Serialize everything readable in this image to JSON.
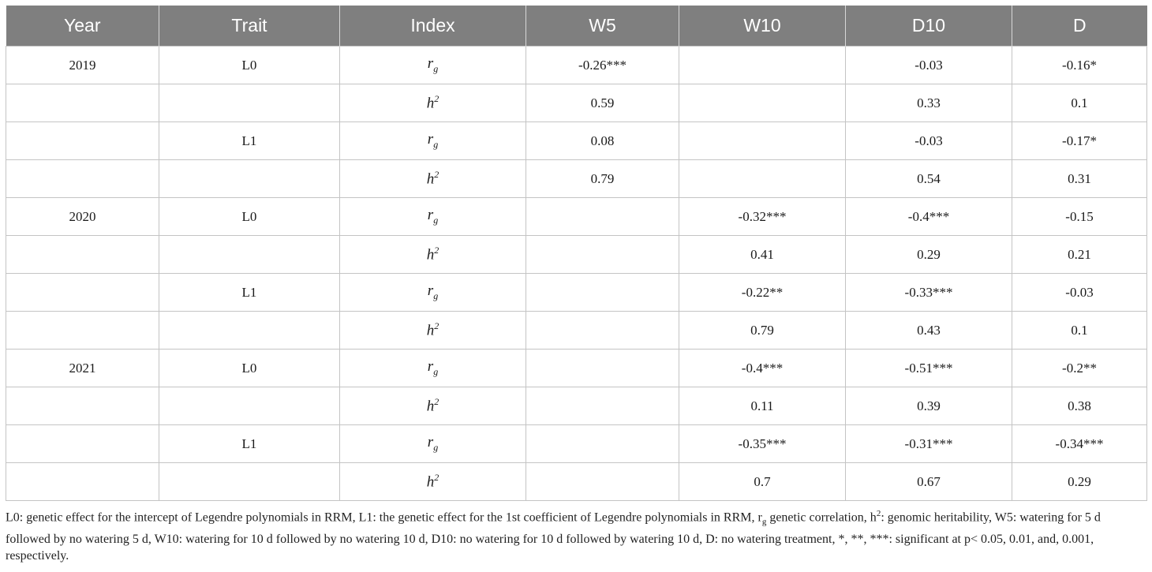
{
  "table": {
    "headers": [
      "Year",
      "Trait",
      "Index",
      "W5",
      "W10",
      "D10",
      "D"
    ],
    "rows": [
      {
        "year": "2019",
        "trait": "L0",
        "index_base": "r",
        "index_sub": "g",
        "index_sup": "",
        "w5": "-0.26***",
        "w10": "",
        "d10": "-0.03",
        "d": "-0.16*"
      },
      {
        "year": "",
        "trait": "",
        "index_base": "h",
        "index_sub": "",
        "index_sup": "2",
        "w5": "0.59",
        "w10": "",
        "d10": "0.33",
        "d": "0.1"
      },
      {
        "year": "",
        "trait": "L1",
        "index_base": "r",
        "index_sub": "g",
        "index_sup": "",
        "w5": "0.08",
        "w10": "",
        "d10": "-0.03",
        "d": "-0.17*"
      },
      {
        "year": "",
        "trait": "",
        "index_base": "h",
        "index_sub": "",
        "index_sup": "2",
        "w5": "0.79",
        "w10": "",
        "d10": "0.54",
        "d": "0.31"
      },
      {
        "year": "2020",
        "trait": "L0",
        "index_base": "r",
        "index_sub": "g",
        "index_sup": "",
        "w5": "",
        "w10": "-0.32***",
        "d10": "-0.4***",
        "d": "-0.15"
      },
      {
        "year": "",
        "trait": "",
        "index_base": "h",
        "index_sub": "",
        "index_sup": "2",
        "w5": "",
        "w10": "0.41",
        "d10": "0.29",
        "d": "0.21"
      },
      {
        "year": "",
        "trait": "L1",
        "index_base": "r",
        "index_sub": "g",
        "index_sup": "",
        "w5": "",
        "w10": "-0.22**",
        "d10": "-0.33***",
        "d": "-0.03"
      },
      {
        "year": "",
        "trait": "",
        "index_base": "h",
        "index_sub": "",
        "index_sup": "2",
        "w5": "",
        "w10": "0.79",
        "d10": "0.43",
        "d": "0.1"
      },
      {
        "year": "2021",
        "trait": "L0",
        "index_base": "r",
        "index_sub": "g",
        "index_sup": "",
        "w5": "",
        "w10": "-0.4***",
        "d10": "-0.51***",
        "d": "-0.2**"
      },
      {
        "year": "",
        "trait": "",
        "index_base": "h",
        "index_sub": "",
        "index_sup": "2",
        "w5": "",
        "w10": "0.11",
        "d10": "0.39",
        "d": "0.38"
      },
      {
        "year": "",
        "trait": "L1",
        "index_base": "r",
        "index_sub": "g",
        "index_sup": "",
        "w5": "",
        "w10": "-0.35***",
        "d10": "-0.31***",
        "d": "-0.34***"
      },
      {
        "year": "",
        "trait": "",
        "index_base": "h",
        "index_sub": "",
        "index_sup": "2",
        "w5": "",
        "w10": "0.7",
        "d10": "0.67",
        "d": "0.29"
      }
    ]
  },
  "caption": {
    "part1": "L0: genetic effect for the intercept of Legendre polynomials in RRM, L1: the genetic effect for the 1st coefficient of Legendre polynomials in RRM, r",
    "sub_g": "g",
    "part2": " genetic correlation, h",
    "sup_2": "2",
    "part3": ": genomic heritability, W5: watering for 5 d followed by no watering 5 d, W10: watering for 10 d followed by no watering 10 d, D10: no watering for 10 d followed by watering 10 d, D: no watering treatment, *, **, ***: significant at p< 0.05, 0.01, and, 0.001, respectively."
  }
}
